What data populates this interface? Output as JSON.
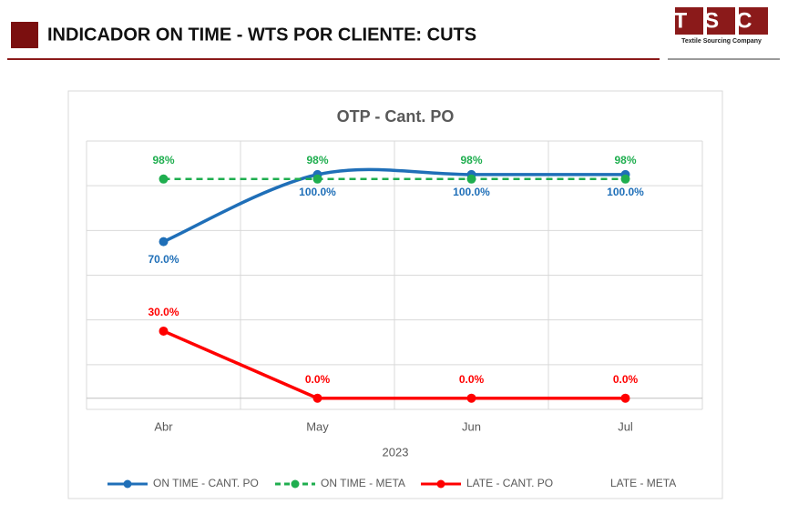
{
  "header": {
    "title": "INDICADOR ON TIME - WTS POR CLIENTE: CUTS",
    "logo": "TSC",
    "logo_subtitle": "Textile Sourcing Company"
  },
  "chart_data": {
    "type": "line",
    "title": "OTP - Cant. PO",
    "x_group_label": "2023",
    "categories": [
      "Abr",
      "May",
      "Jun",
      "Jul"
    ],
    "series": [
      {
        "name": "ON TIME - CANT. PO",
        "color": "#1f6fb8",
        "smooth": true,
        "label_position": "below",
        "values": [
          70,
          100,
          100,
          100
        ],
        "value_labels": [
          "70.0%",
          "100.0%",
          "100.0%",
          "100.0%"
        ]
      },
      {
        "name": "ON TIME - META",
        "color": "#1fae4f",
        "dashed": true,
        "label_position": "above",
        "values": [
          98,
          98,
          98,
          98
        ],
        "value_labels": [
          "98%",
          "98%",
          "98%",
          "98%"
        ]
      },
      {
        "name": "LATE - CANT. PO",
        "color": "#ff0000",
        "label_position": "above",
        "values": [
          30,
          0,
          0,
          0
        ],
        "value_labels": [
          "30.0%",
          "0.0%",
          "0.0%",
          "0.0%"
        ]
      },
      {
        "name": "LATE - META",
        "color": null,
        "values": [
          null,
          null,
          null,
          null
        ]
      }
    ],
    "ylim": [
      -5,
      115
    ],
    "yticks": [
      -5,
      15,
      35,
      55,
      75,
      95,
      115
    ],
    "grid": true,
    "show_ytick_labels": false,
    "legend": "bottom"
  }
}
